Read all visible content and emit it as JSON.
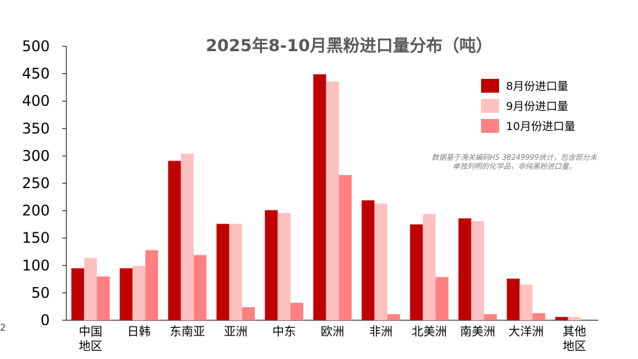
{
  "page_number": "2",
  "chart_data": {
    "type": "bar",
    "title": "2025年8-10月黑粉进口量分布（吨）",
    "categories": [
      "中国\n地区",
      "日韩",
      "东南亚",
      "亚洲",
      "中东",
      "欧洲",
      "非洲",
      "北美洲",
      "南美洲",
      "大洋洲",
      "其他\n地区"
    ],
    "series": [
      {
        "name": "8月份进口量",
        "color": "#c00000",
        "values": [
          95,
          95,
          291,
          176,
          201,
          449,
          219,
          175,
          186,
          76,
          6
        ]
      },
      {
        "name": "9月份进口量",
        "color": "#ffc0c0",
        "values": [
          114,
          99,
          304,
          176,
          196,
          436,
          213,
          194,
          181,
          65,
          6
        ]
      },
      {
        "name": "10月份进口量",
        "color": "#ff8080",
        "values": [
          80,
          128,
          119,
          24,
          32,
          265,
          11,
          79,
          11,
          13,
          0
        ]
      }
    ],
    "ylim": [
      0,
      500
    ],
    "yticks": [
      0,
      50,
      100,
      150,
      200,
      250,
      300,
      350,
      400,
      450,
      500
    ],
    "legend_position": "top-right",
    "grid": false,
    "annotation": "数据基于海关编码HS 38249999统计，包含部分未单独列明的化学品，非纯黑粉进口量。"
  }
}
